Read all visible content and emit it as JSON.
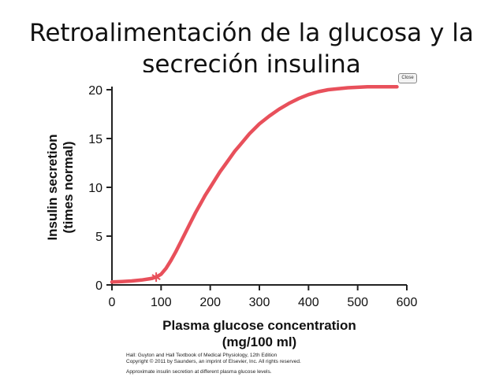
{
  "slide": {
    "title": "Retroalimentación de la glucosa y la secreción insulina"
  },
  "close_button": {
    "label": "Close"
  },
  "credits": {
    "line1": "Hall: Guyton and Hall Textbook of Medical Physiology, 12th Edition",
    "line2": "Copyright © 2011 by Saunders, an imprint of Elsevier, Inc. All rights reserved.",
    "caption": "Approximate insulin secretion at different plasma glucose levels."
  },
  "colors": {
    "curve": "#e8505b",
    "axis": "#222222"
  },
  "chart_data": {
    "type": "line",
    "xlabel": "Plasma glucose concentration",
    "xlabel_unit": "(mg/100 ml)",
    "ylabel": "Insulin secretion",
    "ylabel_unit": "(times normal)",
    "xlim": [
      0,
      600
    ],
    "ylim": [
      0,
      20
    ],
    "xticks": [
      0,
      100,
      200,
      300,
      400,
      500,
      600
    ],
    "yticks": [
      0,
      5,
      10,
      15,
      20
    ],
    "grid": false,
    "series": [
      {
        "x": [
          0,
          20,
          40,
          60,
          80,
          90,
          100,
          110,
          120,
          130,
          140,
          150,
          160,
          170,
          180,
          190,
          200,
          210,
          220,
          230,
          240,
          250,
          260,
          280,
          300,
          320,
          340,
          360,
          380,
          400,
          420,
          440,
          460,
          480,
          500,
          520,
          540,
          560,
          580
        ],
        "y": [
          0.3,
          0.35,
          0.4,
          0.5,
          0.65,
          0.8,
          1.1,
          1.7,
          2.5,
          3.4,
          4.4,
          5.4,
          6.4,
          7.4,
          8.3,
          9.2,
          10.0,
          10.8,
          11.6,
          12.3,
          13.0,
          13.7,
          14.3,
          15.5,
          16.5,
          17.3,
          18.0,
          18.6,
          19.1,
          19.5,
          19.8,
          20.0,
          20.1,
          20.2,
          20.25,
          20.3,
          20.3,
          20.3,
          20.3
        ]
      }
    ],
    "marker": {
      "x": 90,
      "y": 0.8,
      "symbol": "asterisk"
    }
  }
}
